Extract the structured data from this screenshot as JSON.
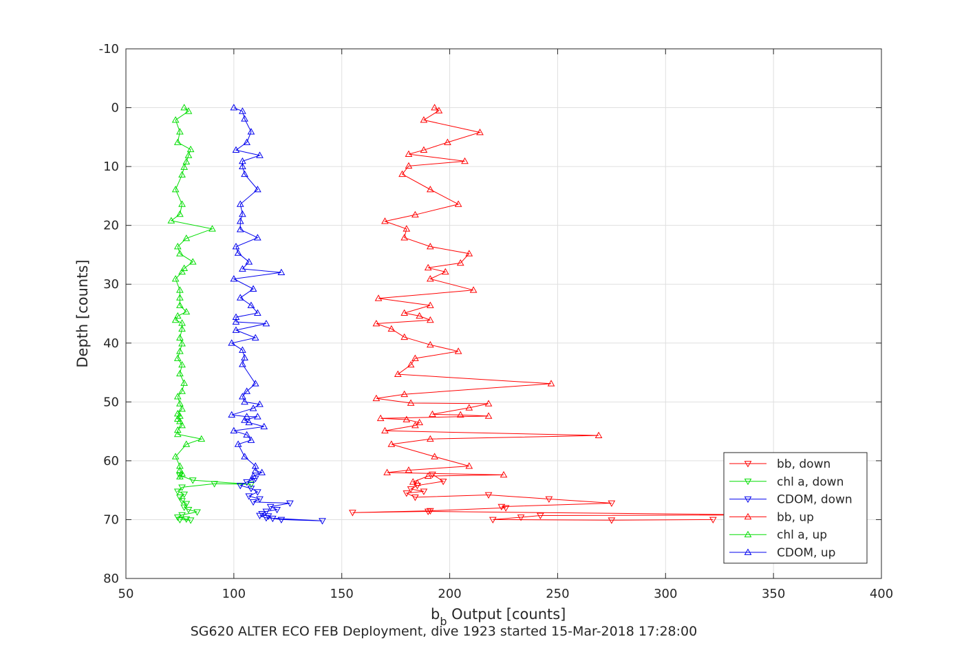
{
  "chart_data": {
    "type": "line",
    "xlabel_main": "b",
    "xlabel_sub": "b",
    "xlabel_rest": " Output [counts]",
    "ylabel": "Depth [counts]",
    "caption": "SG620 ALTER ECO FEB Deployment, dive 1923 started 15-Mar-2018 17:28:00",
    "xlim": [
      50,
      400
    ],
    "ylim": [
      -10,
      80
    ],
    "y_reversed": true,
    "grid": true,
    "legend_position": "bottom-right",
    "xticks": [
      50,
      100,
      150,
      200,
      250,
      300,
      350,
      400
    ],
    "yticks": [
      -10,
      0,
      10,
      20,
      30,
      40,
      50,
      60,
      70,
      80
    ],
    "xtick_labels": [
      "50",
      "100",
      "150",
      "200",
      "250",
      "300",
      "350",
      "400"
    ],
    "ytick_labels": [
      "-10",
      "0",
      "10",
      "20",
      "30",
      "40",
      "50",
      "60",
      "70",
      "80"
    ],
    "series": [
      {
        "name": "bb, down",
        "color": "#ff0000",
        "marker": "triangle-down",
        "points": [
          [
            192,
            62.3
          ],
          [
            197,
            63.5
          ],
          [
            185,
            64.2
          ],
          [
            182,
            64.8
          ],
          [
            188,
            65.2
          ],
          [
            180,
            65.5
          ],
          [
            184,
            66.2
          ],
          [
            218,
            65.8
          ],
          [
            246,
            66.5
          ],
          [
            275,
            67.2
          ],
          [
            224,
            67.8
          ],
          [
            226,
            68.0
          ],
          [
            191,
            68.5
          ],
          [
            155,
            68.8
          ],
          [
            190,
            68.6
          ],
          [
            345,
            69.2
          ],
          [
            242,
            69.3
          ],
          [
            233,
            69.6
          ],
          [
            220,
            70.0
          ],
          [
            275,
            70.1
          ],
          [
            322,
            70.0
          ]
        ]
      },
      {
        "name": "chl a, down",
        "color": "#00dd00",
        "marker": "triangle-down",
        "points": [
          [
            75,
            62.5
          ],
          [
            81,
            63.3
          ],
          [
            108,
            64.0
          ],
          [
            91,
            63.9
          ],
          [
            76,
            64.5
          ],
          [
            74,
            65.2
          ],
          [
            77,
            65.7
          ],
          [
            75,
            66.2
          ],
          [
            76,
            66.8
          ],
          [
            78,
            67.3
          ],
          [
            77,
            67.9
          ],
          [
            79,
            68.3
          ],
          [
            83,
            68.7
          ],
          [
            76,
            69.2
          ],
          [
            74,
            69.6
          ],
          [
            78,
            69.9
          ],
          [
            80,
            70.1
          ],
          [
            75,
            70.0
          ]
        ]
      },
      {
        "name": "CDOM, down",
        "color": "#0000ee",
        "marker": "triangle-down",
        "points": [
          [
            110,
            63.0
          ],
          [
            106,
            63.6
          ],
          [
            103,
            64.2
          ],
          [
            108,
            64.7
          ],
          [
            111,
            65.3
          ],
          [
            107,
            66.0
          ],
          [
            112,
            66.5
          ],
          [
            109,
            67.0
          ],
          [
            126,
            67.2
          ],
          [
            117,
            67.8
          ],
          [
            120,
            68.3
          ],
          [
            115,
            68.6
          ],
          [
            113,
            69.0
          ],
          [
            116,
            69.4
          ],
          [
            118,
            69.8
          ],
          [
            122,
            70.0
          ],
          [
            141,
            70.2
          ],
          [
            115,
            69.7
          ],
          [
            112,
            69.3
          ]
        ]
      },
      {
        "name": "bb, up",
        "color": "#ff0000",
        "marker": "triangle-up",
        "points": [
          [
            193,
            0.0
          ],
          [
            195,
            0.5
          ],
          [
            188,
            2.1
          ],
          [
            214,
            4.2
          ],
          [
            199,
            5.9
          ],
          [
            188,
            7.2
          ],
          [
            181,
            7.9
          ],
          [
            207,
            9.1
          ],
          [
            181,
            9.9
          ],
          [
            178,
            11.3
          ],
          [
            191,
            13.9
          ],
          [
            204,
            16.4
          ],
          [
            184,
            18.2
          ],
          [
            170,
            19.3
          ],
          [
            180,
            20.6
          ],
          [
            179,
            22.1
          ],
          [
            191,
            23.6
          ],
          [
            209,
            24.8
          ],
          [
            205,
            26.4
          ],
          [
            190,
            27.2
          ],
          [
            198,
            27.9
          ],
          [
            191,
            29.1
          ],
          [
            211,
            31.0
          ],
          [
            167,
            32.4
          ],
          [
            191,
            33.6
          ],
          [
            179,
            34.9
          ],
          [
            186,
            35.4
          ],
          [
            191,
            36.1
          ],
          [
            166,
            36.7
          ],
          [
            173,
            37.6
          ],
          [
            179,
            39.0
          ],
          [
            191,
            40.3
          ],
          [
            204,
            41.4
          ],
          [
            184,
            42.6
          ],
          [
            182,
            43.7
          ],
          [
            176,
            45.3
          ],
          [
            247,
            46.9
          ],
          [
            179,
            48.7
          ],
          [
            166,
            49.4
          ],
          [
            182,
            50.2
          ],
          [
            218,
            50.3
          ],
          [
            209,
            51.0
          ],
          [
            192,
            52.1
          ],
          [
            205,
            52.2
          ],
          [
            218,
            52.4
          ],
          [
            168,
            52.8
          ],
          [
            180,
            53.0
          ],
          [
            186,
            53.5
          ],
          [
            184,
            54.0
          ],
          [
            170,
            54.9
          ],
          [
            269,
            55.7
          ],
          [
            191,
            56.3
          ],
          [
            173,
            57.2
          ],
          [
            193,
            59.3
          ],
          [
            209,
            60.9
          ],
          [
            181,
            61.6
          ],
          [
            171,
            62.0
          ],
          [
            225,
            62.4
          ],
          [
            190,
            62.6
          ],
          [
            183,
            63.6
          ],
          [
            185,
            63.8
          ]
        ]
      },
      {
        "name": "chl a, up",
        "color": "#00dd00",
        "marker": "triangle-up",
        "points": [
          [
            77,
            0.0
          ],
          [
            79,
            0.6
          ],
          [
            73,
            2.1
          ],
          [
            75,
            4.1
          ],
          [
            74,
            5.9
          ],
          [
            80,
            7.1
          ],
          [
            79,
            8.1
          ],
          [
            78,
            9.2
          ],
          [
            77,
            10.1
          ],
          [
            76,
            11.4
          ],
          [
            73,
            13.9
          ],
          [
            76,
            16.4
          ],
          [
            75,
            18.1
          ],
          [
            71,
            19.2
          ],
          [
            90,
            20.6
          ],
          [
            78,
            22.2
          ],
          [
            74,
            23.6
          ],
          [
            75,
            24.8
          ],
          [
            81,
            26.2
          ],
          [
            77,
            27.3
          ],
          [
            76,
            27.9
          ],
          [
            73,
            29.1
          ],
          [
            75,
            31.0
          ],
          [
            75,
            32.3
          ],
          [
            75,
            33.6
          ],
          [
            78,
            34.7
          ],
          [
            74,
            35.4
          ],
          [
            73,
            36.1
          ],
          [
            76,
            36.6
          ],
          [
            76,
            37.6
          ],
          [
            75,
            39.1
          ],
          [
            76,
            40.1
          ],
          [
            75,
            41.4
          ],
          [
            74,
            42.6
          ],
          [
            76,
            43.7
          ],
          [
            75,
            45.2
          ],
          [
            77,
            46.8
          ],
          [
            76,
            48.2
          ],
          [
            74,
            49.1
          ],
          [
            75,
            50.3
          ],
          [
            76,
            51.2
          ],
          [
            74,
            52.0
          ],
          [
            75,
            52.4
          ],
          [
            74,
            52.9
          ],
          [
            75,
            53.3
          ],
          [
            76,
            54.0
          ],
          [
            74,
            54.8
          ],
          [
            74,
            55.5
          ],
          [
            85,
            56.3
          ],
          [
            78,
            57.2
          ],
          [
            73,
            59.3
          ],
          [
            75,
            60.9
          ],
          [
            75,
            61.6
          ],
          [
            76,
            62.2
          ],
          [
            75,
            62.7
          ]
        ]
      },
      {
        "name": "CDOM, up",
        "color": "#0000ee",
        "marker": "triangle-up",
        "points": [
          [
            100,
            0.0
          ],
          [
            104,
            0.6
          ],
          [
            105,
            1.9
          ],
          [
            108,
            4.1
          ],
          [
            106,
            5.9
          ],
          [
            101,
            7.2
          ],
          [
            112,
            8.1
          ],
          [
            104,
            9.1
          ],
          [
            104,
            10.0
          ],
          [
            105,
            11.3
          ],
          [
            111,
            13.9
          ],
          [
            103,
            16.4
          ],
          [
            104,
            18.1
          ],
          [
            103,
            19.3
          ],
          [
            103,
            20.7
          ],
          [
            111,
            22.1
          ],
          [
            101,
            23.6
          ],
          [
            102,
            24.7
          ],
          [
            107,
            26.2
          ],
          [
            104,
            27.4
          ],
          [
            122,
            28.0
          ],
          [
            100,
            29.1
          ],
          [
            109,
            30.8
          ],
          [
            103,
            32.3
          ],
          [
            108,
            33.6
          ],
          [
            111,
            34.9
          ],
          [
            101,
            35.6
          ],
          [
            101,
            36.4
          ],
          [
            115,
            36.7
          ],
          [
            101,
            37.8
          ],
          [
            110,
            39.1
          ],
          [
            99,
            40.0
          ],
          [
            104,
            41.2
          ],
          [
            105,
            42.5
          ],
          [
            104,
            43.6
          ],
          [
            110,
            46.9
          ],
          [
            106,
            48.2
          ],
          [
            104,
            49.1
          ],
          [
            105,
            50.0
          ],
          [
            112,
            50.4
          ],
          [
            109,
            51.1
          ],
          [
            99,
            52.2
          ],
          [
            106,
            52.5
          ],
          [
            111,
            52.5
          ],
          [
            105,
            53.1
          ],
          [
            107,
            53.5
          ],
          [
            114,
            54.2
          ],
          [
            100,
            54.9
          ],
          [
            106,
            55.6
          ],
          [
            108,
            56.5
          ],
          [
            102,
            57.2
          ],
          [
            105,
            59.3
          ],
          [
            110,
            60.9
          ],
          [
            110,
            61.7
          ],
          [
            113,
            62.0
          ],
          [
            109,
            62.6
          ],
          [
            108,
            63.3
          ]
        ]
      }
    ]
  }
}
